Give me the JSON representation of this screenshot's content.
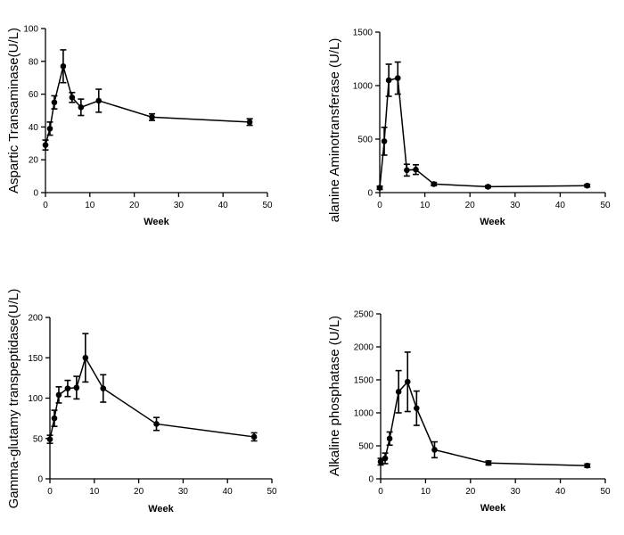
{
  "chart_data": [
    {
      "type": "line",
      "xlabel": "Week",
      "ylabel": "Aspartic Transaminase(U/L)",
      "xlim": [
        0,
        50
      ],
      "ylim": [
        0,
        100
      ],
      "xticks": [
        0,
        10,
        20,
        30,
        40,
        50
      ],
      "yticks": [
        0,
        20,
        40,
        60,
        80,
        100
      ],
      "grid": false,
      "x": [
        0,
        1,
        2,
        4,
        6,
        8,
        12,
        24,
        46
      ],
      "y": [
        29,
        39,
        55,
        77,
        58,
        52,
        56,
        46,
        43
      ],
      "error": [
        3,
        4,
        4,
        10,
        3,
        5,
        7,
        2,
        2
      ]
    },
    {
      "type": "line",
      "xlabel": "Week",
      "ylabel": "alanine Aminotransferase (U/L)",
      "xlim": [
        0,
        50
      ],
      "ylim": [
        0,
        1500
      ],
      "xticks": [
        0,
        10,
        20,
        30,
        40,
        50
      ],
      "yticks": [
        0,
        500,
        1000,
        1500
      ],
      "grid": false,
      "x": [
        0,
        1,
        2,
        4,
        6,
        8,
        12,
        24,
        46
      ],
      "y": [
        45,
        480,
        1050,
        1070,
        210,
        215,
        80,
        55,
        65
      ],
      "error": [
        15,
        130,
        150,
        150,
        55,
        45,
        15,
        10,
        12
      ]
    },
    {
      "type": "line",
      "xlabel": "Week",
      "ylabel": "Gamma-glutamy transpeptidase(U/L)",
      "xlim": [
        0,
        50
      ],
      "ylim": [
        0,
        200
      ],
      "xticks": [
        0,
        10,
        20,
        30,
        40,
        50
      ],
      "yticks": [
        0,
        50,
        100,
        150,
        200
      ],
      "grid": false,
      "x": [
        0,
        1,
        2,
        4,
        6,
        8,
        12,
        24,
        46
      ],
      "y": [
        49,
        75,
        104,
        112,
        113,
        150,
        112,
        68,
        52
      ],
      "error": [
        5,
        10,
        10,
        10,
        14,
        30,
        17,
        8,
        5
      ]
    },
    {
      "type": "line",
      "xlabel": "Week",
      "ylabel": "Alkaline phosphatase (U/L)",
      "xlim": [
        0,
        50
      ],
      "ylim": [
        0,
        2500
      ],
      "xticks": [
        0,
        10,
        20,
        30,
        40,
        50
      ],
      "yticks": [
        0,
        500,
        1000,
        1500,
        2000,
        2500
      ],
      "grid": false,
      "x": [
        0,
        1,
        2,
        4,
        6,
        8,
        12,
        24,
        46
      ],
      "y": [
        260,
        310,
        610,
        1320,
        1470,
        1070,
        440,
        240,
        200
      ],
      "error": [
        50,
        80,
        100,
        320,
        450,
        260,
        120,
        30,
        25
      ]
    }
  ]
}
